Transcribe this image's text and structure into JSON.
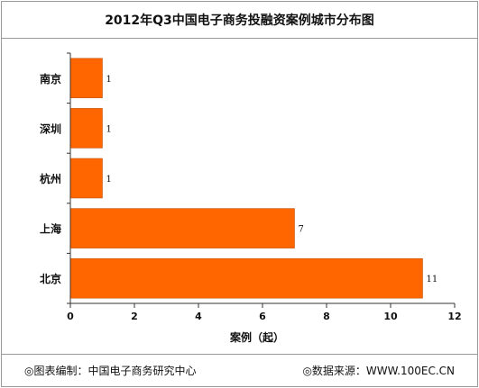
{
  "chart_data": {
    "type": "bar",
    "orientation": "horizontal",
    "title": "2012年Q3中国电子商务投融资案例城市分布图",
    "categories": [
      "南京",
      "深圳",
      "杭州",
      "上海",
      "北京"
    ],
    "values": [
      1,
      1,
      1,
      7,
      11
    ],
    "xlabel": "案例（起）",
    "ylabel": "",
    "xlim": [
      0,
      12
    ],
    "xticks": [
      0,
      2,
      4,
      6,
      8,
      10,
      12
    ],
    "bar_color": "#ff6600",
    "grid": false,
    "legend": "none"
  },
  "footer": {
    "left": "◎图表编制：中国电子商务研究中心",
    "right": "◎数据来源：WWW.100EC.CN"
  }
}
